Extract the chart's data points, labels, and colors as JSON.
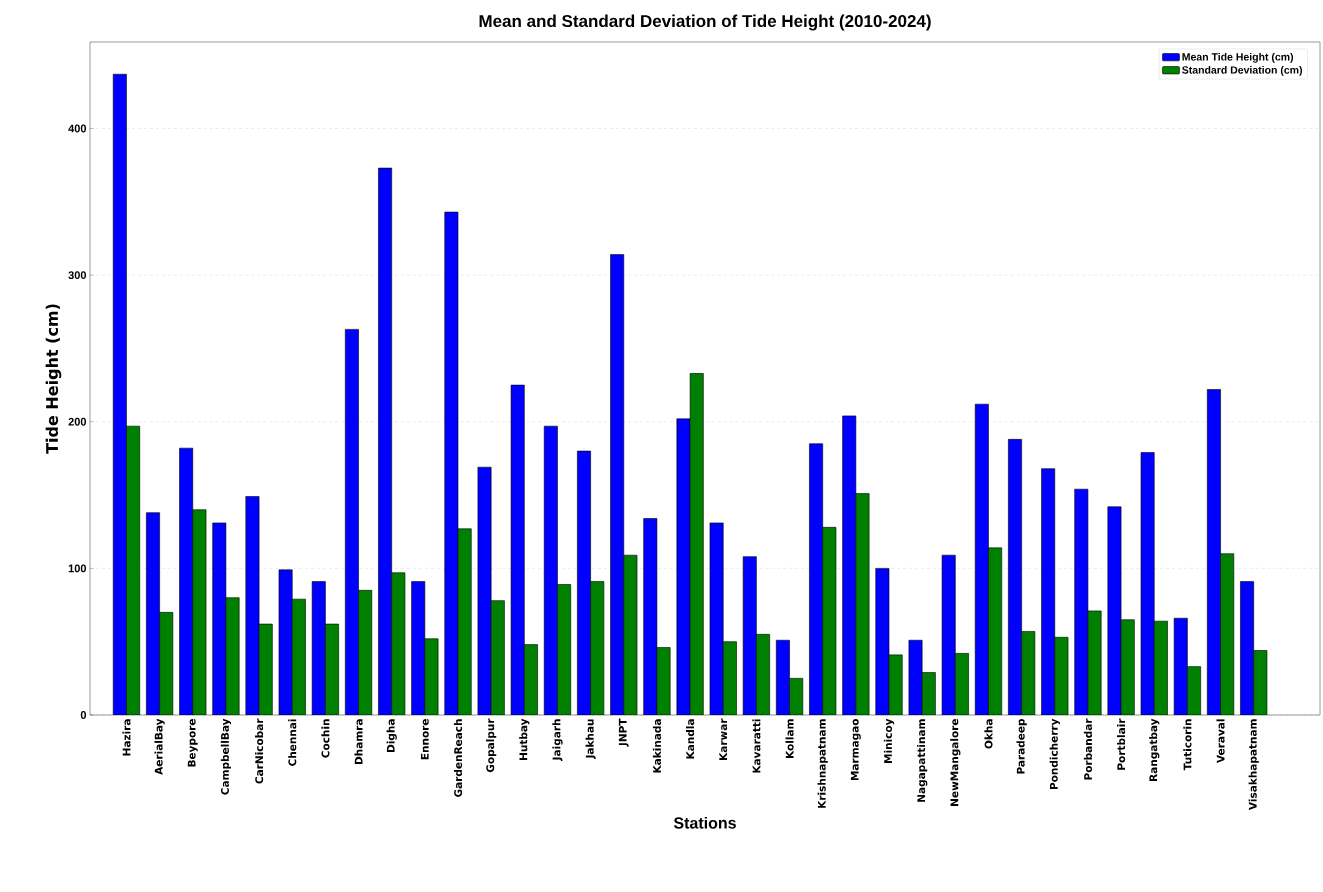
{
  "chart_data": {
    "type": "bar",
    "title": "Mean and Standard Deviation of Tide Height (2010-2024)",
    "xlabel": "Stations",
    "ylabel": "Tide Height (cm)",
    "categories": [
      "Hazira",
      "AerialBay",
      "Beypore",
      "CampbellBay",
      "CarNicobar",
      "Chennai",
      "Cochin",
      "Dhamra",
      "Digha",
      "Ennore",
      "GardenReach",
      "Gopalpur",
      "Hutbay",
      "Jaigarh",
      "Jakhau",
      "JNPT",
      "Kakinada",
      "Kandla",
      "Karwar",
      "Kavaratti",
      "Kollam",
      "Krishnapatnam",
      "Marmagao",
      "Minicoy",
      "Nagapattinam",
      "NewMangalore",
      "Okha",
      "Paradeep",
      "Pondicherry",
      "Porbandar",
      "Portblair",
      "Rangatbay",
      "Tuticorin",
      "Veraval",
      "Visakhapatnam"
    ],
    "series": [
      {
        "name": "Mean Tide Height (cm)",
        "color": "#0000ff",
        "values": [
          437,
          138,
          182,
          131,
          149,
          99,
          91,
          263,
          373,
          91,
          343,
          169,
          225,
          197,
          180,
          314,
          134,
          202,
          131,
          108,
          51,
          185,
          204,
          100,
          51,
          109,
          212,
          188,
          168,
          154,
          142,
          179,
          66,
          222,
          91
        ]
      },
      {
        "name": "Standard Deviation (cm)",
        "color": "#008000",
        "values": [
          197,
          70,
          140,
          80,
          62,
          79,
          62,
          85,
          97,
          52,
          127,
          78,
          48,
          89,
          91,
          109,
          46,
          233,
          50,
          55,
          25,
          128,
          151,
          41,
          29,
          42,
          114,
          57,
          53,
          71,
          65,
          64,
          33,
          110,
          44
        ]
      }
    ],
    "ylim": [
      0,
      459
    ],
    "yticks": [
      0,
      100,
      200,
      300,
      400
    ],
    "grid": "y",
    "legend": "top right"
  }
}
